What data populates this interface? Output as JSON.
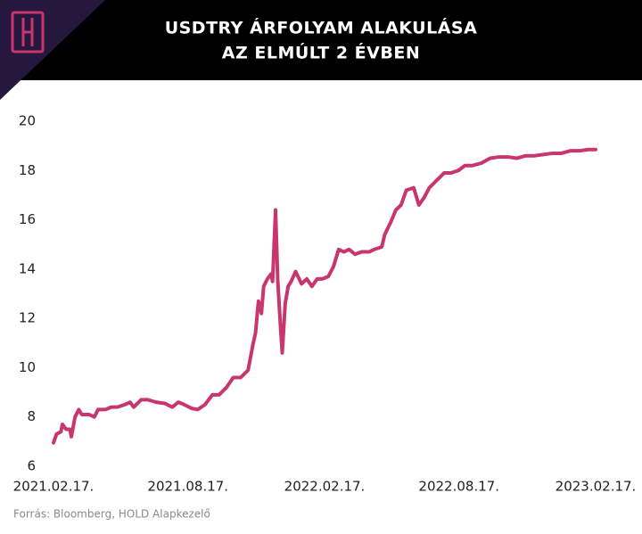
{
  "chart_data": {
    "type": "line",
    "title": [
      "USDTRY ÁRFOLYAM ALAKULÁSA",
      "AZ ELMÚLT 2 ÉVBEN"
    ],
    "source": "Forrás: Bloomberg, HOLD Alapkezelő",
    "color": "#c8366e",
    "x": [
      "2021-02-17",
      "2021-02-21",
      "2021-02-27",
      "2021-03-01",
      "2021-03-06",
      "2021-03-11",
      "2021-03-13",
      "2021-03-18",
      "2021-03-23",
      "2021-03-27",
      "2021-04-06",
      "2021-04-13",
      "2021-04-18",
      "2021-04-28",
      "2021-05-06",
      "2021-05-14",
      "2021-05-24",
      "2021-05-31",
      "2021-06-05",
      "2021-06-15",
      "2021-06-24",
      "2021-07-05",
      "2021-07-17",
      "2021-07-27",
      "2021-08-04",
      "2021-08-12",
      "2021-08-22",
      "2021-08-30",
      "2021-09-09",
      "2021-09-19",
      "2021-09-28",
      "2021-10-08",
      "2021-10-17",
      "2021-10-27",
      "2021-11-06",
      "2021-11-13",
      "2021-11-16",
      "2021-11-20",
      "2021-11-24",
      "2021-11-27",
      "2021-12-02",
      "2021-12-07",
      "2021-12-09",
      "2021-12-13",
      "2021-12-16",
      "2021-12-20",
      "2021-12-22",
      "2021-12-26",
      "2021-12-30",
      "2022-01-03",
      "2022-01-09",
      "2022-01-17",
      "2022-01-24",
      "2022-01-31",
      "2022-02-07",
      "2022-02-14",
      "2022-02-22",
      "2022-03-01",
      "2022-03-08",
      "2022-03-15",
      "2022-03-22",
      "2022-03-30",
      "2022-04-08",
      "2022-04-18",
      "2022-04-25",
      "2022-05-05",
      "2022-05-09",
      "2022-05-17",
      "2022-05-24",
      "2022-05-31",
      "2022-06-07",
      "2022-06-17",
      "2022-06-24",
      "2022-07-01",
      "2022-07-08",
      "2022-07-18",
      "2022-07-28",
      "2022-08-06",
      "2022-08-16",
      "2022-08-25",
      "2022-09-04",
      "2022-09-16",
      "2022-09-28",
      "2022-10-10",
      "2022-10-22",
      "2022-11-03",
      "2022-11-15",
      "2022-11-27",
      "2022-12-09",
      "2022-12-21",
      "2023-01-02",
      "2023-01-14",
      "2023-01-26",
      "2023-02-07",
      "2023-02-17"
    ],
    "values": [
      6.95,
      7.3,
      7.4,
      7.7,
      7.5,
      7.5,
      7.2,
      8.0,
      8.3,
      8.1,
      8.1,
      8.0,
      8.3,
      8.3,
      8.4,
      8.4,
      8.5,
      8.6,
      8.4,
      8.7,
      8.7,
      8.6,
      8.55,
      8.4,
      8.6,
      8.5,
      8.35,
      8.3,
      8.5,
      8.9,
      8.9,
      9.2,
      9.6,
      9.6,
      9.9,
      11.0,
      11.4,
      12.7,
      12.2,
      13.3,
      13.6,
      13.8,
      13.5,
      16.4,
      13.5,
      11.5,
      10.6,
      12.6,
      13.3,
      13.5,
      13.9,
      13.4,
      13.6,
      13.3,
      13.6,
      13.6,
      13.7,
      14.1,
      14.8,
      14.7,
      14.8,
      14.6,
      14.7,
      14.7,
      14.8,
      14.9,
      15.4,
      15.9,
      16.4,
      16.6,
      17.2,
      17.3,
      16.6,
      16.9,
      17.3,
      17.6,
      17.9,
      17.9,
      18.0,
      18.2,
      18.2,
      18.3,
      18.5,
      18.55,
      18.55,
      18.5,
      18.6,
      18.6,
      18.65,
      18.7,
      18.7,
      18.8,
      18.8,
      18.85,
      18.85
    ],
    "xlim": [
      "2021-02-17",
      "2023-02-17"
    ],
    "xticks": [
      {
        "value": "2021-02-17",
        "label": "2021.02.17."
      },
      {
        "value": "2021-08-17",
        "label": "2021.08.17."
      },
      {
        "value": "2022-02-17",
        "label": "2022.02.17."
      },
      {
        "value": "2022-08-17",
        "label": "2022.08.17."
      },
      {
        "value": "2023-02-17",
        "label": "2023.02.17."
      }
    ],
    "ylim": [
      6,
      20
    ],
    "yticks": [
      6,
      8,
      10,
      12,
      14,
      16,
      18,
      20
    ],
    "grid": false
  }
}
